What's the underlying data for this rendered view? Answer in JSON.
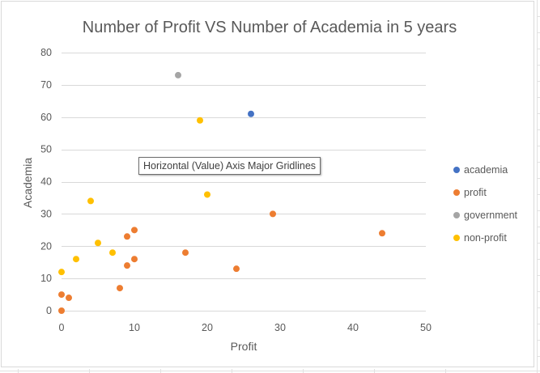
{
  "tooltip": "Horizontal (Value) Axis Major Gridlines",
  "chart_data": {
    "type": "scatter",
    "title": "Number of Profit VS Number of Academia in 5 years",
    "xlabel": "Profit",
    "ylabel": "Academia",
    "xlim": [
      0,
      50
    ],
    "ylim": [
      0,
      80
    ],
    "x_ticks": [
      0,
      10,
      20,
      30,
      40,
      50
    ],
    "y_ticks": [
      0,
      10,
      20,
      30,
      40,
      50,
      60,
      70,
      80
    ],
    "grid": true,
    "legend_position": "right",
    "series": [
      {
        "name": "academia",
        "color": "#4472c4",
        "points": [
          [
            26,
            61
          ]
        ]
      },
      {
        "name": "profit",
        "color": "#ed7d31",
        "points": [
          [
            0,
            0
          ],
          [
            0,
            5
          ],
          [
            1,
            4
          ],
          [
            8,
            7
          ],
          [
            9,
            14
          ],
          [
            9,
            23
          ],
          [
            10,
            16
          ],
          [
            10,
            25
          ],
          [
            17,
            18
          ],
          [
            24,
            13
          ],
          [
            29,
            30
          ],
          [
            44,
            24
          ]
        ]
      },
      {
        "name": "government",
        "color": "#a5a5a5",
        "points": [
          [
            16,
            73
          ]
        ]
      },
      {
        "name": "non-profit",
        "color": "#ffc000",
        "points": [
          [
            0,
            12
          ],
          [
            2,
            16
          ],
          [
            4,
            34
          ],
          [
            5,
            21
          ],
          [
            7,
            18
          ],
          [
            19,
            59
          ],
          [
            20,
            36
          ]
        ]
      }
    ]
  }
}
